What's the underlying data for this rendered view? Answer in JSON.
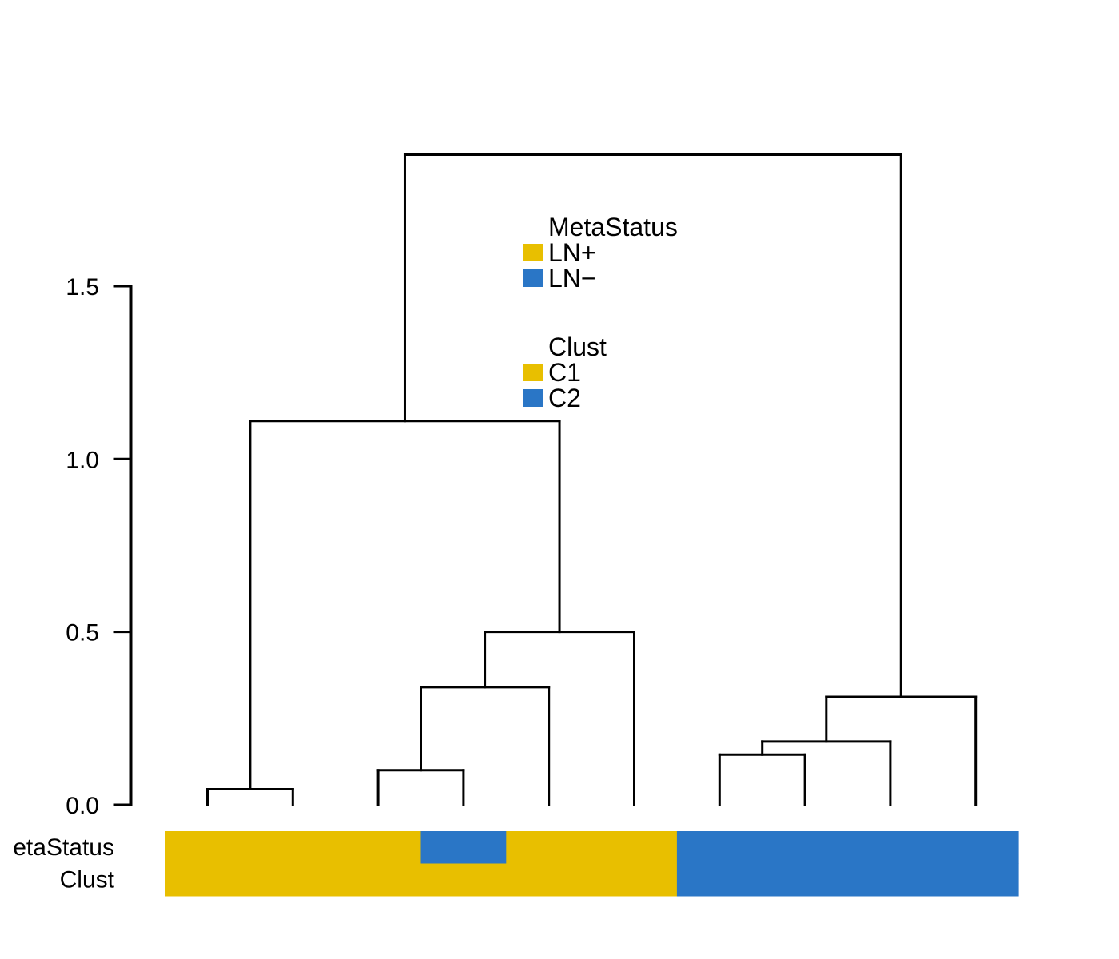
{
  "chart_data": {
    "type": "dendrogram",
    "y_axis": {
      "range": [
        0,
        2
      ],
      "ticks": [
        0.0,
        0.5,
        1.0,
        1.5
      ],
      "tick_labels": [
        "0.0",
        "0.5",
        "1.0",
        "1.5"
      ]
    },
    "leaves": 10,
    "merges": [
      {
        "left": 1,
        "right": 2,
        "height": 0.045
      },
      {
        "left": 3,
        "right": 4,
        "height": 0.1
      },
      {
        "left": 3.5,
        "right": 5,
        "height": 0.34
      },
      {
        "left": 4.25,
        "right": 6,
        "height": 0.5
      },
      {
        "left": 1.5,
        "right": 5.125,
        "height": 1.11
      },
      {
        "left": 7,
        "right": 8,
        "height": 0.145
      },
      {
        "left": 7.5,
        "right": 9,
        "height": 0.183
      },
      {
        "left": 8.25,
        "right": 10,
        "height": 0.312
      },
      {
        "left": 3.3125,
        "right": 9.125,
        "height": 1.88
      }
    ],
    "annotation_tracks": [
      {
        "label": "etaStatus",
        "segments": [
          {
            "from": 0.5,
            "to": 3.5,
            "level": "LN+"
          },
          {
            "from": 3.5,
            "to": 4.5,
            "level": "LN−"
          },
          {
            "from": 4.5,
            "to": 6.5,
            "level": "LN+"
          },
          {
            "from": 6.5,
            "to": 10.5,
            "level": "LN−"
          }
        ]
      },
      {
        "label": "Clust",
        "segments": [
          {
            "from": 0.5,
            "to": 6.5,
            "level": "C1"
          },
          {
            "from": 6.5,
            "to": 10.5,
            "level": "C2"
          }
        ]
      }
    ],
    "legends": [
      {
        "title": "MetaStatus",
        "items": [
          {
            "label": "LN+",
            "color": "#E8BF00"
          },
          {
            "label": "LN−",
            "color": "#2A76C6"
          }
        ]
      },
      {
        "title": "Clust",
        "items": [
          {
            "label": "C1",
            "color": "#E8BF00"
          },
          {
            "label": "C2",
            "color": "#2A76C6"
          }
        ]
      }
    ],
    "colors": {
      "yellow": "#E8BF00",
      "blue": "#2A76C6"
    }
  }
}
